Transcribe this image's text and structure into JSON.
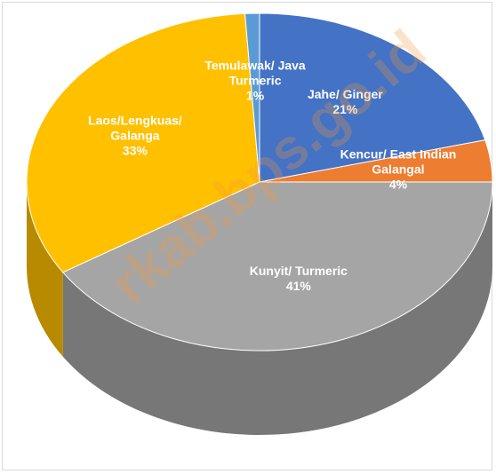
{
  "chart_data": {
    "type": "pie",
    "categories": [
      "Jahe/ Ginger",
      "Kencur/ East Indian Galangal",
      "Kunyit/ Turmeric",
      "Laos/Lengkuas/ Galanga",
      "Temulawak/ Java Turmeric"
    ],
    "values": [
      21,
      4,
      41,
      33,
      1
    ],
    "value_labels": [
      "21%",
      "4%",
      "41%",
      "33%",
      "1%"
    ],
    "colors": [
      "#4472c4",
      "#ed7d31",
      "#a5a5a5",
      "#ffc000",
      "#5b9bd5"
    ],
    "watermark": "rkab.bps.go.id"
  }
}
